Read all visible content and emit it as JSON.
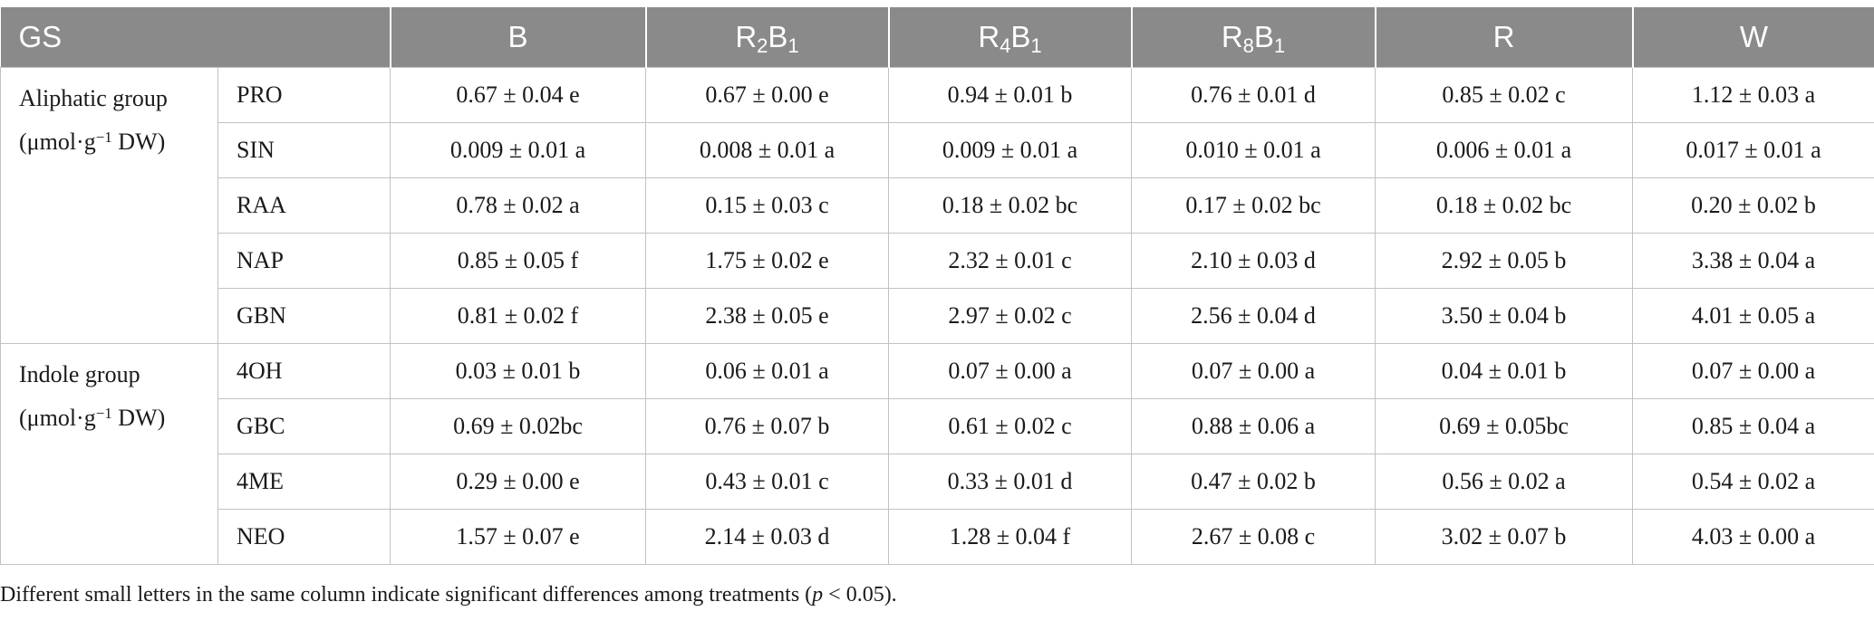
{
  "header": {
    "gs": "GS",
    "treatments": [
      {
        "base": "B",
        "sub1": "",
        "mid": "",
        "sub2": ""
      },
      {
        "base": "R",
        "sub1": "2",
        "mid": "B",
        "sub2": "1"
      },
      {
        "base": "R",
        "sub1": "4",
        "mid": "B",
        "sub2": "1"
      },
      {
        "base": "R",
        "sub1": "8",
        "mid": "B",
        "sub2": "1"
      },
      {
        "base": "R",
        "sub1": "",
        "mid": "",
        "sub2": ""
      },
      {
        "base": "W",
        "sub1": "",
        "mid": "",
        "sub2": ""
      }
    ]
  },
  "groups": [
    {
      "name": "Aliphatic group",
      "unit_pre": "(μmol·g",
      "unit_sup": "−1",
      "unit_post": " DW)",
      "rows": [
        {
          "compound": "PRO",
          "values": [
            "0.67 ± 0.04 e",
            "0.67 ± 0.00 e",
            "0.94 ± 0.01 b",
            "0.76 ± 0.01 d",
            "0.85 ± 0.02 c",
            "1.12 ± 0.03 a"
          ]
        },
        {
          "compound": "SIN",
          "values": [
            "0.009 ± 0.01 a",
            "0.008 ± 0.01 a",
            "0.009 ± 0.01 a",
            "0.010 ± 0.01 a",
            "0.006 ± 0.01 a",
            "0.017 ± 0.01 a"
          ]
        },
        {
          "compound": "RAA",
          "values": [
            "0.78 ± 0.02 a",
            "0.15 ± 0.03 c",
            "0.18 ± 0.02 bc",
            "0.17 ± 0.02 bc",
            "0.18 ± 0.02 bc",
            "0.20 ± 0.02 b"
          ]
        },
        {
          "compound": "NAP",
          "values": [
            "0.85 ± 0.05 f",
            "1.75 ± 0.02 e",
            "2.32 ± 0.01 c",
            "2.10 ± 0.03 d",
            "2.92 ± 0.05 b",
            "3.38 ± 0.04 a"
          ]
        },
        {
          "compound": "GBN",
          "values": [
            "0.81 ± 0.02 f",
            "2.38 ± 0.05 e",
            "2.97 ± 0.02 c",
            "2.56 ± 0.04 d",
            "3.50 ± 0.04 b",
            "4.01 ± 0.05 a"
          ]
        }
      ]
    },
    {
      "name": "Indole group",
      "unit_pre": "(μmol·g",
      "unit_sup": "−1",
      "unit_post": " DW)",
      "rows": [
        {
          "compound": "4OH",
          "values": [
            "0.03 ± 0.01 b",
            "0.06 ± 0.01 a",
            "0.07 ± 0.00 a",
            "0.07 ± 0.00 a",
            "0.04 ± 0.01 b",
            "0.07 ± 0.00 a"
          ]
        },
        {
          "compound": "GBC",
          "values": [
            "0.69 ± 0.02bc",
            "0.76 ± 0.07 b",
            "0.61 ± 0.02 c",
            "0.88 ± 0.06 a",
            "0.69 ± 0.05bc",
            "0.85 ± 0.04 a"
          ]
        },
        {
          "compound": "4ME",
          "values": [
            "0.29 ± 0.00 e",
            "0.43 ± 0.01 c",
            "0.33 ± 0.01 d",
            "0.47 ± 0.02 b",
            "0.56 ± 0.02 a",
            "0.54 ± 0.02 a"
          ]
        },
        {
          "compound": "NEO",
          "values": [
            "1.57 ± 0.07 e",
            "2.14 ± 0.03 d",
            "1.28 ± 0.04 f",
            "2.67 ± 0.08 c",
            "3.02 ± 0.07 b",
            "4.03 ± 0.00 a"
          ]
        }
      ]
    }
  ],
  "footnote": {
    "before": "Different small letters in the same column indicate significant differences among treatments (",
    "italic": "p",
    "after": " < 0.05)."
  }
}
